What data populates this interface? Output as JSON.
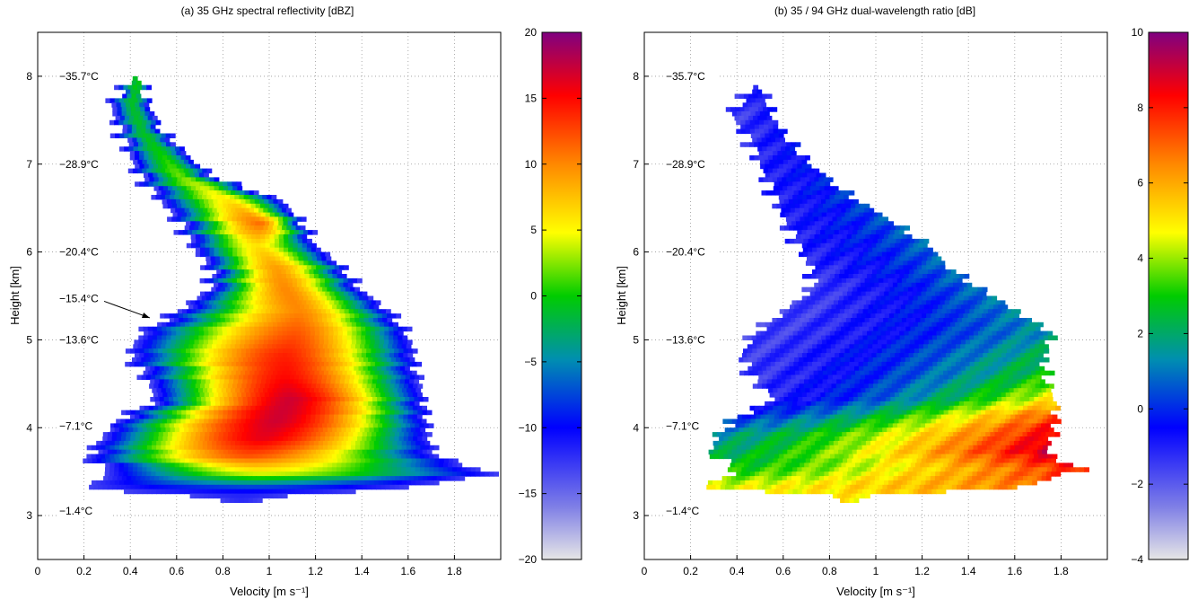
{
  "chart_data": [
    {
      "type": "heatmap",
      "title": "(a) 35 GHz spectral reflectivity [dBZ]",
      "xlabel": "Velocity [m s⁻¹]",
      "ylabel": "Height [km]",
      "xlim": [
        0,
        2.0
      ],
      "ylim": [
        2.5,
        8.5
      ],
      "x_ticks": [
        "0",
        "0.2",
        "0.4",
        "0.6",
        "0.8",
        "1",
        "1.2",
        "1.4",
        "1.6",
        "1.8"
      ],
      "y_ticks": [
        "3",
        "4",
        "5",
        "6",
        "7",
        "8"
      ],
      "grid": true,
      "colorbar": {
        "min": -20,
        "max": 20,
        "ticks": [
          "20",
          "15",
          "10",
          "5",
          "0",
          "−5",
          "−10",
          "−15",
          "−20"
        ],
        "colormap": "grey-blue-green-yellow-red-purple"
      },
      "temperature_labels": [
        {
          "text": "−35.7°C",
          "height_km": 8.0
        },
        {
          "text": "−28.9°C",
          "height_km": 7.0
        },
        {
          "text": "−20.4°C",
          "height_km": 6.0
        },
        {
          "text": "−15.4°C",
          "height_km": 5.47
        },
        {
          "text": "−13.6°C",
          "height_km": 5.0
        },
        {
          "text": "−7.1°C",
          "height_km": 4.02
        },
        {
          "text": "−1.4°C",
          "height_km": 3.05
        }
      ],
      "annotation_arrow": {
        "from_label": "−15.4°C",
        "to_velocity": 0.5,
        "to_height_km": 5.25
      },
      "profile": [
        {
          "h": 7.95,
          "v0": 0.39,
          "v1": 0.44,
          "peak_v": 0.42,
          "peak": 0
        },
        {
          "h": 7.7,
          "v0": 0.31,
          "v1": 0.47,
          "peak_v": 0.4,
          "peak": -1
        },
        {
          "h": 7.4,
          "v0": 0.35,
          "v1": 0.53,
          "peak_v": 0.44,
          "peak": -1
        },
        {
          "h": 7.15,
          "v0": 0.39,
          "v1": 0.63,
          "peak_v": 0.52,
          "peak": 0
        },
        {
          "h": 6.9,
          "v0": 0.43,
          "v1": 0.74,
          "peak_v": 0.6,
          "peak": 2
        },
        {
          "h": 6.6,
          "v0": 0.53,
          "v1": 1.05,
          "peak_v": 0.82,
          "peak": 6
        },
        {
          "h": 6.35,
          "v0": 0.61,
          "v1": 1.14,
          "peak_v": 0.95,
          "peak": 11
        },
        {
          "h": 6.1,
          "v0": 0.66,
          "v1": 1.19,
          "peak_v": 0.94,
          "peak": 6
        },
        {
          "h": 5.85,
          "v0": 0.74,
          "v1": 1.31,
          "peak_v": 1.02,
          "peak": 9
        },
        {
          "h": 5.6,
          "v0": 0.74,
          "v1": 1.38,
          "peak_v": 1.06,
          "peak": 10
        },
        {
          "h": 5.35,
          "v0": 0.6,
          "v1": 1.51,
          "peak_v": 1.12,
          "peak": 10
        },
        {
          "h": 5.1,
          "v0": 0.44,
          "v1": 1.59,
          "peak_v": 1.1,
          "peak": 12
        },
        {
          "h": 4.85,
          "v0": 0.39,
          "v1": 1.62,
          "peak_v": 1.06,
          "peak": 14
        },
        {
          "h": 4.6,
          "v0": 0.46,
          "v1": 1.63,
          "peak_v": 1.06,
          "peak": 15
        },
        {
          "h": 4.35,
          "v0": 0.51,
          "v1": 1.66,
          "peak_v": 1.08,
          "peak": 17
        },
        {
          "h": 4.1,
          "v0": 0.33,
          "v1": 1.68,
          "peak_v": 1.02,
          "peak": 17
        },
        {
          "h": 3.9,
          "v0": 0.27,
          "v1": 1.68,
          "peak_v": 0.96,
          "peak": 16
        },
        {
          "h": 3.7,
          "v0": 0.21,
          "v1": 1.72,
          "peak_v": 0.9,
          "peak": 12
        },
        {
          "h": 3.5,
          "v0": 0.31,
          "v1": 1.96,
          "peak_v": 0.95,
          "peak": 4
        },
        {
          "h": 3.33,
          "v0": 0.19,
          "v1": 1.55,
          "peak_v": 0.9,
          "peak": -9
        },
        {
          "h": 3.24,
          "v0": 0.75,
          "v1": 0.98,
          "peak_v": 0.87,
          "peak": -12
        }
      ]
    },
    {
      "type": "heatmap",
      "title": "(b) 35 / 94 GHz dual-wavelength ratio [dB]",
      "xlabel": "Velocity [m s⁻¹]",
      "ylabel": "Height [km]",
      "xlim": [
        0,
        2.0
      ],
      "ylim": [
        2.5,
        8.5
      ],
      "x_ticks": [
        "0",
        "0.2",
        "0.4",
        "0.6",
        "0.8",
        "1",
        "1.2",
        "1.4",
        "1.6",
        "1.8"
      ],
      "y_ticks": [
        "3",
        "4",
        "5",
        "6",
        "7",
        "8"
      ],
      "grid": true,
      "colorbar": {
        "min": -4,
        "max": 10,
        "ticks": [
          "10",
          "8",
          "6",
          "4",
          "2",
          "0",
          "−2",
          "−4"
        ],
        "colormap": "grey-blue-green-yellow-red-purple"
      },
      "temperature_labels": [
        {
          "text": "−35.7°C",
          "height_km": 8.0
        },
        {
          "text": "−28.9°C",
          "height_km": 7.0
        },
        {
          "text": "−20.4°C",
          "height_km": 6.0
        },
        {
          "text": "−13.6°C",
          "height_km": 5.0
        },
        {
          "text": "−7.1°C",
          "height_km": 4.02
        },
        {
          "text": "−1.4°C",
          "height_km": 3.05
        }
      ],
      "profile": [
        {
          "h": 7.85,
          "v0": 0.45,
          "v1": 0.5,
          "lo": -1.2,
          "hi": -0.8
        },
        {
          "h": 7.6,
          "v0": 0.37,
          "v1": 0.54,
          "lo": -1.5,
          "hi": -0.8
        },
        {
          "h": 7.3,
          "v0": 0.45,
          "v1": 0.61,
          "lo": -1.2,
          "hi": -0.6
        },
        {
          "h": 7.0,
          "v0": 0.5,
          "v1": 0.72,
          "lo": -1.0,
          "hi": -0.4
        },
        {
          "h": 6.7,
          "v0": 0.55,
          "v1": 0.86,
          "lo": -1.0,
          "hi": 0.2
        },
        {
          "h": 6.4,
          "v0": 0.6,
          "v1": 1.05,
          "lo": -1.0,
          "hi": 0.6
        },
        {
          "h": 6.1,
          "v0": 0.66,
          "v1": 1.22,
          "lo": -1.0,
          "hi": 0.8
        },
        {
          "h": 5.85,
          "v0": 0.72,
          "v1": 1.3,
          "lo": -1.2,
          "hi": 0.8
        },
        {
          "h": 5.6,
          "v0": 0.72,
          "v1": 1.45,
          "lo": -1.5,
          "hi": 1.0
        },
        {
          "h": 5.35,
          "v0": 0.6,
          "v1": 1.6,
          "lo": -1.6,
          "hi": 1.2
        },
        {
          "h": 5.1,
          "v0": 0.47,
          "v1": 1.75,
          "lo": -1.6,
          "hi": 1.5
        },
        {
          "h": 4.85,
          "v0": 0.42,
          "v1": 1.72,
          "lo": -1.5,
          "hi": 2.2
        },
        {
          "h": 4.6,
          "v0": 0.46,
          "v1": 1.73,
          "lo": -1.4,
          "hi": 3.0
        },
        {
          "h": 4.35,
          "v0": 0.56,
          "v1": 1.76,
          "lo": -1.0,
          "hi": 5.0
        },
        {
          "h": 4.15,
          "v0": 0.4,
          "v1": 1.77,
          "lo": 0.0,
          "hi": 7.5
        },
        {
          "h": 3.95,
          "v0": 0.32,
          "v1": 1.76,
          "lo": 1.5,
          "hi": 8.6
        },
        {
          "h": 3.75,
          "v0": 0.28,
          "v1": 1.72,
          "lo": 2.0,
          "hi": 9.0
        },
        {
          "h": 3.55,
          "v0": 0.4,
          "v1": 1.88,
          "lo": 3.0,
          "hi": 8.0
        },
        {
          "h": 3.35,
          "v0": 0.26,
          "v1": 1.6,
          "lo": 4.5,
          "hi": 6.5
        },
        {
          "h": 3.24,
          "v0": 0.85,
          "v1": 0.92,
          "lo": 5.0,
          "hi": 5.0
        }
      ]
    }
  ]
}
